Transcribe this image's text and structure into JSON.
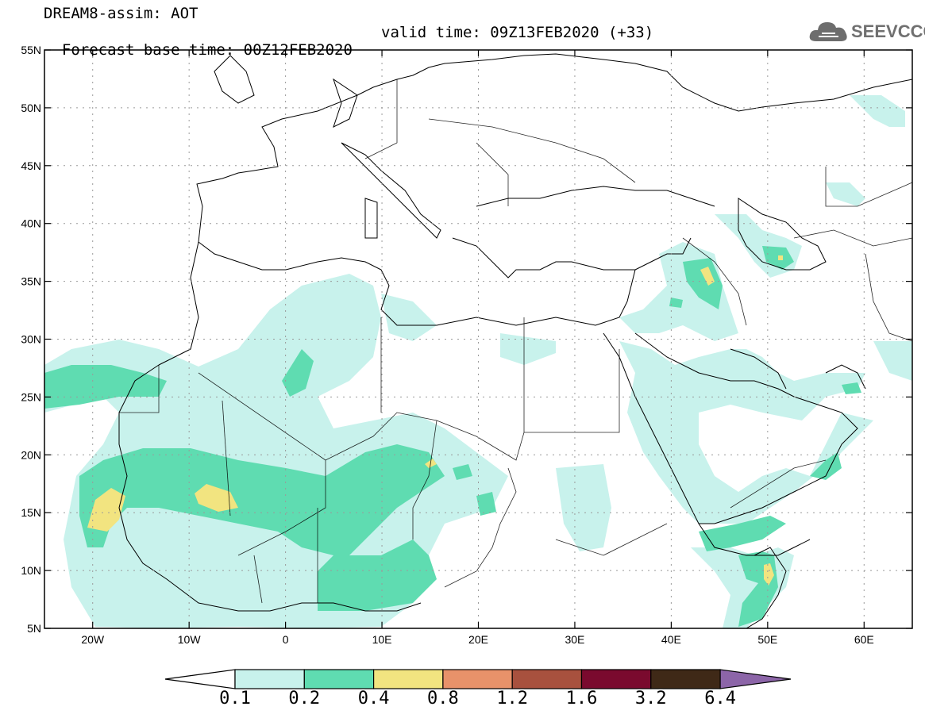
{
  "header": {
    "title_line1": "DREAM8-assim: AOT",
    "forecast_base": "Forecast base time: 00Z12FEB2020",
    "valid_time": "valid time: 09Z13FEB2020 (+33)"
  },
  "logo": {
    "text": "SEEVCCC",
    "icon": "cloud-icon"
  },
  "map": {
    "lat_ticks": [
      "55N",
      "50N",
      "45N",
      "40N",
      "35N",
      "30N",
      "25N",
      "20N",
      "15N",
      "10N",
      "5N"
    ],
    "lon_ticks": [
      "20W",
      "10W",
      "0",
      "10E",
      "20E",
      "30E",
      "40E",
      "50E",
      "60E"
    ],
    "lat_range": [
      5,
      55
    ],
    "lon_range": [
      -25,
      65
    ]
  },
  "colorbar": {
    "labels": [
      "0.1",
      "0.2",
      "0.4",
      "0.8",
      "1.2",
      "1.6",
      "3.2",
      "6.4"
    ],
    "colors": [
      "#c8f2ec",
      "#5fdcb1",
      "#f2e480",
      "#e8926a",
      "#a8513e",
      "#7a0a2e",
      "#3f2917",
      "#8c65a8"
    ],
    "under_color": "#ffffff"
  }
}
